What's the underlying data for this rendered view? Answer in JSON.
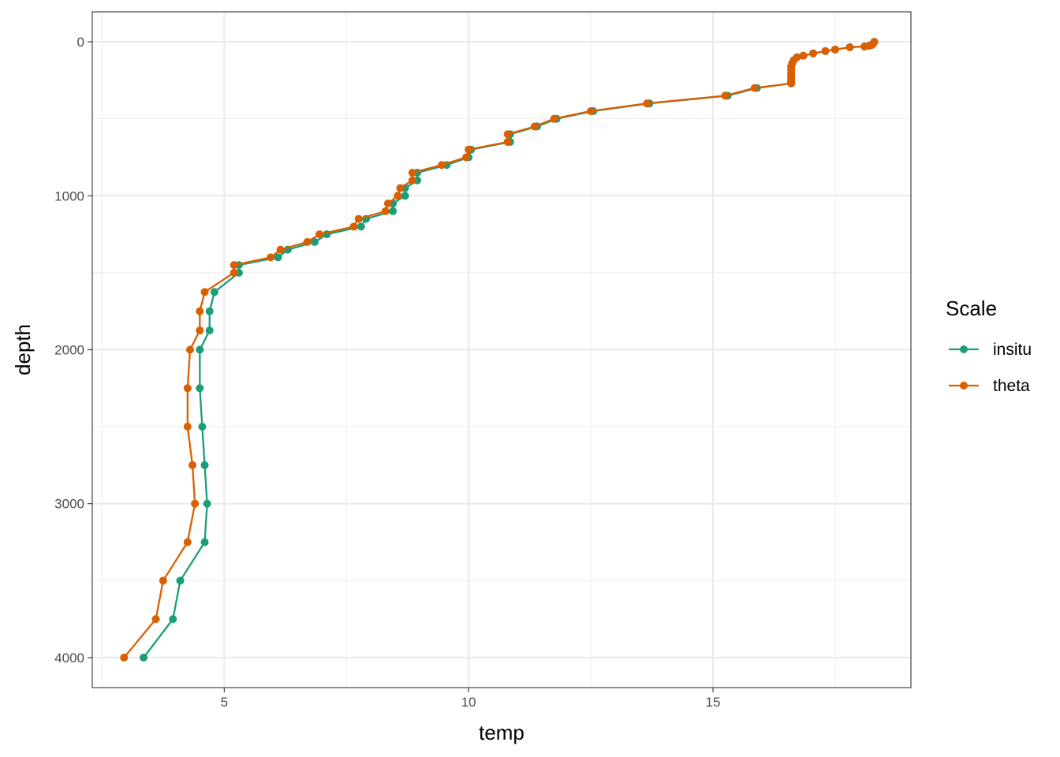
{
  "chart_data": {
    "type": "line",
    "xlabel": "temp",
    "ylabel": "depth",
    "x_ticks": [
      5,
      10,
      15
    ],
    "y_ticks": [
      0,
      1000,
      2000,
      3000,
      4000
    ],
    "xlim": [
      2.3,
      19.05
    ],
    "ylim": [
      -195,
      4195
    ],
    "y_reversed": true,
    "grid": true,
    "legend_position": "right",
    "legend": {
      "title": "Scale",
      "items": [
        "insitu",
        "theta"
      ]
    },
    "series": [
      {
        "name": "insitu",
        "color": "#1b9e77",
        "points": [
          {
            "x": 18.3,
            "y": 0
          },
          {
            "x": 18.28,
            "y": 10
          },
          {
            "x": 18.25,
            "y": 20
          },
          {
            "x": 18.2,
            "y": 25
          },
          {
            "x": 18.1,
            "y": 30
          },
          {
            "x": 17.8,
            "y": 35
          },
          {
            "x": 17.5,
            "y": 50
          },
          {
            "x": 17.3,
            "y": 60
          },
          {
            "x": 17.05,
            "y": 75
          },
          {
            "x": 16.85,
            "y": 90
          },
          {
            "x": 16.72,
            "y": 100
          },
          {
            "x": 16.65,
            "y": 120
          },
          {
            "x": 16.62,
            "y": 140
          },
          {
            "x": 16.6,
            "y": 160
          },
          {
            "x": 16.6,
            "y": 180
          },
          {
            "x": 16.6,
            "y": 200
          },
          {
            "x": 16.6,
            "y": 220
          },
          {
            "x": 16.6,
            "y": 240
          },
          {
            "x": 16.6,
            "y": 260
          },
          {
            "x": 16.6,
            "y": 270
          },
          {
            "x": 15.9,
            "y": 300
          },
          {
            "x": 15.3,
            "y": 350
          },
          {
            "x": 13.7,
            "y": 400
          },
          {
            "x": 12.55,
            "y": 450
          },
          {
            "x": 11.8,
            "y": 500
          },
          {
            "x": 11.4,
            "y": 550
          },
          {
            "x": 10.85,
            "y": 600
          },
          {
            "x": 10.85,
            "y": 650
          },
          {
            "x": 10.05,
            "y": 700
          },
          {
            "x": 10.0,
            "y": 750
          },
          {
            "x": 9.55,
            "y": 800
          },
          {
            "x": 8.95,
            "y": 850
          },
          {
            "x": 8.95,
            "y": 900
          },
          {
            "x": 8.7,
            "y": 950
          },
          {
            "x": 8.7,
            "y": 1000
          },
          {
            "x": 8.45,
            "y": 1050
          },
          {
            "x": 8.45,
            "y": 1100
          },
          {
            "x": 7.9,
            "y": 1150
          },
          {
            "x": 7.8,
            "y": 1200
          },
          {
            "x": 7.1,
            "y": 1250
          },
          {
            "x": 6.85,
            "y": 1300
          },
          {
            "x": 6.3,
            "y": 1350
          },
          {
            "x": 6.1,
            "y": 1400
          },
          {
            "x": 5.3,
            "y": 1450
          },
          {
            "x": 5.3,
            "y": 1500
          },
          {
            "x": 4.8,
            "y": 1625
          },
          {
            "x": 4.7,
            "y": 1750
          },
          {
            "x": 4.7,
            "y": 1875
          },
          {
            "x": 4.5,
            "y": 2000
          },
          {
            "x": 4.5,
            "y": 2250
          },
          {
            "x": 4.55,
            "y": 2500
          },
          {
            "x": 4.6,
            "y": 2750
          },
          {
            "x": 4.65,
            "y": 3000
          },
          {
            "x": 4.6,
            "y": 3250
          },
          {
            "x": 4.1,
            "y": 3500
          },
          {
            "x": 3.95,
            "y": 3750
          },
          {
            "x": 3.35,
            "y": 4000
          }
        ]
      },
      {
        "name": "theta",
        "color": "#d95f02",
        "points": [
          {
            "x": 18.3,
            "y": 0
          },
          {
            "x": 18.28,
            "y": 10
          },
          {
            "x": 18.25,
            "y": 20
          },
          {
            "x": 18.2,
            "y": 25
          },
          {
            "x": 18.1,
            "y": 30
          },
          {
            "x": 17.8,
            "y": 35
          },
          {
            "x": 17.5,
            "y": 50
          },
          {
            "x": 17.3,
            "y": 60
          },
          {
            "x": 17.05,
            "y": 75
          },
          {
            "x": 16.85,
            "y": 90
          },
          {
            "x": 16.72,
            "y": 100
          },
          {
            "x": 16.65,
            "y": 120
          },
          {
            "x": 16.62,
            "y": 140
          },
          {
            "x": 16.6,
            "y": 160
          },
          {
            "x": 16.6,
            "y": 180
          },
          {
            "x": 16.6,
            "y": 200
          },
          {
            "x": 16.6,
            "y": 220
          },
          {
            "x": 16.6,
            "y": 240
          },
          {
            "x": 16.6,
            "y": 260
          },
          {
            "x": 16.6,
            "y": 270
          },
          {
            "x": 15.85,
            "y": 300
          },
          {
            "x": 15.25,
            "y": 350
          },
          {
            "x": 13.65,
            "y": 400
          },
          {
            "x": 12.5,
            "y": 450
          },
          {
            "x": 11.75,
            "y": 500
          },
          {
            "x": 11.35,
            "y": 550
          },
          {
            "x": 10.8,
            "y": 600
          },
          {
            "x": 10.8,
            "y": 650
          },
          {
            "x": 10.0,
            "y": 700
          },
          {
            "x": 9.95,
            "y": 750
          },
          {
            "x": 9.45,
            "y": 800
          },
          {
            "x": 8.85,
            "y": 850
          },
          {
            "x": 8.85,
            "y": 900
          },
          {
            "x": 8.6,
            "y": 950
          },
          {
            "x": 8.55,
            "y": 1000
          },
          {
            "x": 8.35,
            "y": 1050
          },
          {
            "x": 8.3,
            "y": 1100
          },
          {
            "x": 7.75,
            "y": 1150
          },
          {
            "x": 7.65,
            "y": 1200
          },
          {
            "x": 6.95,
            "y": 1250
          },
          {
            "x": 6.7,
            "y": 1300
          },
          {
            "x": 6.15,
            "y": 1350
          },
          {
            "x": 5.95,
            "y": 1400
          },
          {
            "x": 5.2,
            "y": 1450
          },
          {
            "x": 5.2,
            "y": 1500
          },
          {
            "x": 4.6,
            "y": 1625
          },
          {
            "x": 4.5,
            "y": 1750
          },
          {
            "x": 4.5,
            "y": 1875
          },
          {
            "x": 4.3,
            "y": 2000
          },
          {
            "x": 4.25,
            "y": 2250
          },
          {
            "x": 4.25,
            "y": 2500
          },
          {
            "x": 4.35,
            "y": 2750
          },
          {
            "x": 4.4,
            "y": 3000
          },
          {
            "x": 4.25,
            "y": 3250
          },
          {
            "x": 3.75,
            "y": 3500
          },
          {
            "x": 3.6,
            "y": 3750
          },
          {
            "x": 2.95,
            "y": 4000
          }
        ]
      }
    ]
  }
}
